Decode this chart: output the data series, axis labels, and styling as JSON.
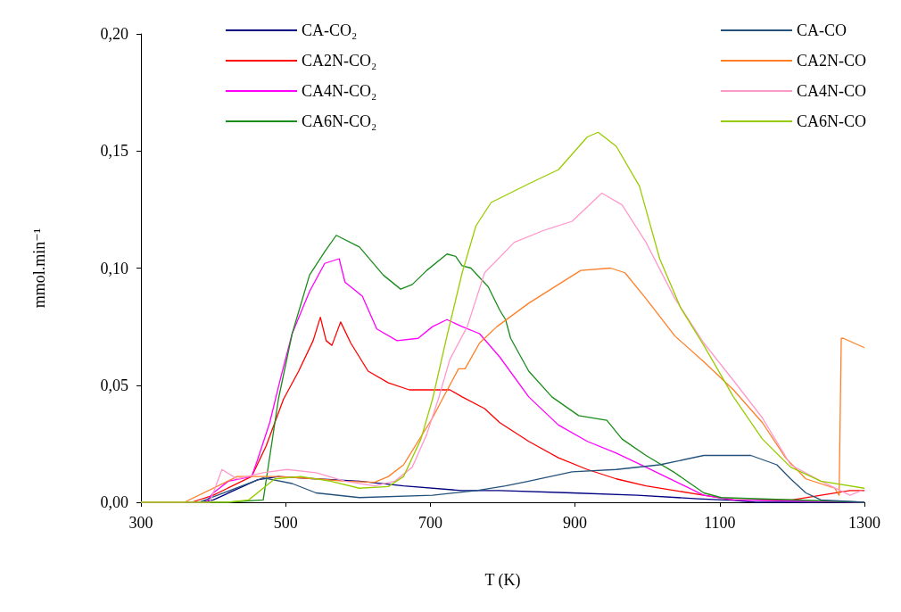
{
  "chart_data": {
    "type": "line",
    "xlabel": "T (K)",
    "ylabel": "mmol.min⁻¹",
    "xlim": [
      300,
      1300
    ],
    "xticks": [
      300,
      500,
      700,
      900,
      1100,
      1300
    ],
    "ylim": [
      0,
      0.2
    ],
    "yticks": [
      {
        "value": 0,
        "label": "0,00"
      },
      {
        "value": 0.05,
        "label": "0,05"
      },
      {
        "value": 0.1,
        "label": "0,10"
      },
      {
        "value": 0.15,
        "label": "0,15"
      },
      {
        "value": 0.2,
        "label": "0,20"
      }
    ],
    "grid": false,
    "legend": "top",
    "marker": "none",
    "line_style": "solid",
    "series": [
      {
        "name": "CA-CO₂",
        "color": "#000080",
        "x": [
          300,
          380,
          400,
          461,
          490,
          542,
          602,
          663,
          744,
          796,
          896,
          986,
          1070,
          1119,
          1150,
          1300
        ],
        "values": [
          0,
          0,
          0.001,
          0.0096,
          0.011,
          0.01,
          0.009,
          0.007,
          0.005,
          0.005,
          0.004,
          0.003,
          0.0015,
          0.0008,
          0,
          0
        ]
      },
      {
        "name": "CA2N-CO₂",
        "color": "#ff0000",
        "x": [
          300,
          370,
          400,
          453,
          473,
          497,
          518,
          538,
          548,
          556,
          564,
          576,
          590,
          614,
          642,
          671,
          699,
          727,
          744,
          775,
          796,
          836,
          877,
          917,
          957,
          998,
          1038,
          1078,
          1119,
          1200,
          1280,
          1300
        ],
        "values": [
          0,
          0,
          0.003,
          0.011,
          0.024,
          0.044,
          0.056,
          0.069,
          0.079,
          0.069,
          0.067,
          0.077,
          0.068,
          0.056,
          0.051,
          0.048,
          0.048,
          0.048,
          0.045,
          0.04,
          0.034,
          0.026,
          0.019,
          0.014,
          0.01,
          0.007,
          0.005,
          0.003,
          0.001,
          0.001,
          0.005,
          0.005
        ]
      },
      {
        "name": "CA4N-CO₂",
        "color": "#ff00ff",
        "x": [
          300,
          390,
          400,
          421,
          453,
          461,
          478,
          493,
          509,
          533,
          554,
          574,
          582,
          606,
          626,
          654,
          683,
          703,
          723,
          744,
          768,
          796,
          836,
          877,
          917,
          957,
          998,
          1038,
          1078,
          1119,
          1300
        ],
        "values": [
          0,
          0,
          0.004,
          0.009,
          0.011,
          0.018,
          0.034,
          0.053,
          0.072,
          0.09,
          0.102,
          0.104,
          0.094,
          0.088,
          0.074,
          0.069,
          0.07,
          0.075,
          0.078,
          0.075,
          0.072,
          0.062,
          0.045,
          0.033,
          0.026,
          0.021,
          0.015,
          0.009,
          0.003,
          0.001,
          0
        ]
      },
      {
        "name": "CA6N-CO₂",
        "color": "#1a8c1a",
        "x": [
          300,
          420,
          469,
          490,
          509,
          533,
          554,
          570,
          602,
          635,
          659,
          675,
          695,
          723,
          735,
          744,
          756,
          780,
          796,
          804,
          811,
          836,
          868,
          905,
          944,
          965,
          998,
          1038,
          1078,
          1102,
          1300
        ],
        "values": [
          0,
          0,
          0.001,
          0.044,
          0.072,
          0.097,
          0.107,
          0.114,
          0.109,
          0.097,
          0.091,
          0.093,
          0.099,
          0.106,
          0.105,
          0.101,
          0.1,
          0.092,
          0.082,
          0.078,
          0.07,
          0.056,
          0.045,
          0.037,
          0.035,
          0.027,
          0.02,
          0.0126,
          0.004,
          0.002,
          0
        ]
      },
      {
        "name": "CA-CO",
        "color": "#24527a",
        "x": [
          300,
          380,
          469,
          509,
          542,
          602,
          703,
          764,
          804,
          836,
          896,
          957,
          1017,
          1078,
          1143,
          1179,
          1198,
          1219,
          1240,
          1300
        ],
        "values": [
          0,
          0,
          0.0104,
          0.008,
          0.004,
          0.002,
          0.003,
          0.005,
          0.007,
          0.009,
          0.013,
          0.014,
          0.016,
          0.02,
          0.02,
          0.016,
          0.01,
          0.004,
          0.001,
          0
        ]
      },
      {
        "name": "CA2N-CO",
        "color": "#ff7f27",
        "x": [
          300,
          360,
          433,
          490,
          542,
          582,
          623,
          642,
          663,
          683,
          703,
          720,
          739,
          748,
          768,
          792,
          836,
          877,
          908,
          949,
          969,
          998,
          1038,
          1078,
          1119,
          1159,
          1191,
          1219,
          1259,
          1265,
          1268,
          1271,
          1300
        ],
        "values": [
          0,
          0,
          0.011,
          0.011,
          0.01,
          0.009,
          0.0085,
          0.011,
          0.016,
          0.026,
          0.036,
          0.046,
          0.057,
          0.057,
          0.068,
          0.075,
          0.085,
          0.093,
          0.099,
          0.1,
          0.098,
          0.087,
          0.071,
          0.06,
          0.048,
          0.034,
          0.019,
          0.01,
          0.006,
          0.003,
          0.07,
          0.07,
          0.066
        ]
      },
      {
        "name": "CA4N-CO",
        "color": "#ff99cc",
        "x": [
          300,
          395,
          412,
          433,
          469,
          502,
          542,
          582,
          623,
          651,
          675,
          695,
          711,
          727,
          751,
          775,
          816,
          856,
          896,
          937,
          965,
          998,
          1038,
          1078,
          1119,
          1159,
          1198,
          1240,
          1280,
          1296
        ],
        "values": [
          0,
          0,
          0.014,
          0.01,
          0.0126,
          0.014,
          0.0126,
          0.009,
          0.007,
          0.009,
          0.015,
          0.029,
          0.044,
          0.061,
          0.075,
          0.098,
          0.111,
          0.116,
          0.12,
          0.132,
          0.127,
          0.111,
          0.087,
          0.068,
          0.052,
          0.036,
          0.016,
          0.009,
          0.003,
          0.005
        ]
      },
      {
        "name": "CA6N-CO",
        "color": "#99cc00",
        "x": [
          300,
          420,
          449,
          485,
          521,
          562,
          602,
          642,
          663,
          687,
          703,
          723,
          744,
          763,
          784,
          836,
          877,
          917,
          932,
          957,
          989,
          1017,
          1046,
          1078,
          1119,
          1159,
          1198,
          1240,
          1300
        ],
        "values": [
          0,
          0,
          0.001,
          0.01,
          0.011,
          0.009,
          0.006,
          0.0067,
          0.011,
          0.027,
          0.044,
          0.071,
          0.098,
          0.118,
          0.128,
          0.136,
          0.142,
          0.156,
          0.158,
          0.152,
          0.135,
          0.104,
          0.083,
          0.067,
          0.045,
          0.027,
          0.015,
          0.009,
          0.006
        ]
      }
    ]
  }
}
